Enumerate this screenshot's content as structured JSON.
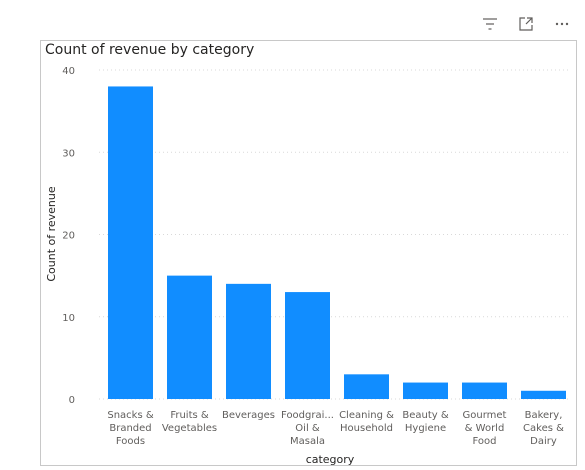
{
  "toolbar": {
    "filter_icon": "filter-icon",
    "focus_icon": "focus-mode-icon",
    "more_icon": "more-options-icon"
  },
  "chart_data": {
    "type": "bar",
    "title": "Count of revenue by category",
    "xlabel": "category",
    "ylabel": "Count of revenue",
    "categories": [
      [
        "Snacks &",
        "Branded",
        "Foods"
      ],
      [
        "Fruits &",
        "Vegetables"
      ],
      [
        "Beverages"
      ],
      [
        "Foodgrai...",
        "Oil &",
        "Masala"
      ],
      [
        "Cleaning &",
        "Household"
      ],
      [
        "Beauty &",
        "Hygiene"
      ],
      [
        "Gourmet",
        "& World",
        "Food"
      ],
      [
        "Bakery,",
        "Cakes &",
        "Dairy"
      ]
    ],
    "values": [
      38,
      15,
      14,
      13,
      3,
      2,
      2,
      1
    ],
    "ylim": [
      0,
      40
    ],
    "yticks": [
      0,
      10,
      20,
      30,
      40
    ],
    "grid": true,
    "bar_color": "#118DFF"
  }
}
